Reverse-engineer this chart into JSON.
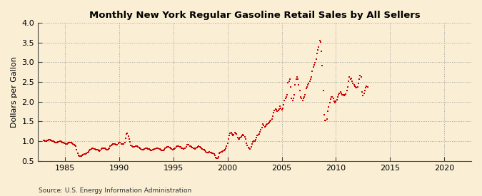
{
  "title": "Monthly New York Regular Gasoline Retail Sales by All Sellers",
  "ylabel": "Dollars per Gallon",
  "source": "Source: U.S. Energy Information Administration",
  "background_color": "#faefd4",
  "dot_color": "#cc0000",
  "ylim": [
    0.5,
    4.0
  ],
  "xlim": [
    1982.5,
    2022.5
  ],
  "yticks": [
    0.5,
    1.0,
    1.5,
    2.0,
    2.5,
    3.0,
    3.5,
    4.0
  ],
  "xticks": [
    1985,
    1990,
    1995,
    2000,
    2005,
    2010,
    2015,
    2020
  ],
  "data": [
    [
      1983.0,
      1.03
    ],
    [
      1983.08,
      1.02
    ],
    [
      1983.17,
      1.0
    ],
    [
      1983.25,
      1.01
    ],
    [
      1983.33,
      1.02
    ],
    [
      1983.42,
      1.03
    ],
    [
      1983.5,
      1.04
    ],
    [
      1983.58,
      1.04
    ],
    [
      1983.67,
      1.03
    ],
    [
      1983.75,
      1.02
    ],
    [
      1983.83,
      1.01
    ],
    [
      1983.92,
      1.0
    ],
    [
      1984.0,
      0.99
    ],
    [
      1984.08,
      0.97
    ],
    [
      1984.17,
      0.97
    ],
    [
      1984.25,
      0.97
    ],
    [
      1984.33,
      0.98
    ],
    [
      1984.42,
      0.99
    ],
    [
      1984.5,
      1.0
    ],
    [
      1984.58,
      1.0
    ],
    [
      1984.67,
      0.99
    ],
    [
      1984.75,
      0.97
    ],
    [
      1984.83,
      0.96
    ],
    [
      1984.92,
      0.95
    ],
    [
      1985.0,
      0.95
    ],
    [
      1985.08,
      0.94
    ],
    [
      1985.17,
      0.94
    ],
    [
      1985.25,
      0.95
    ],
    [
      1985.33,
      0.96
    ],
    [
      1985.42,
      0.97
    ],
    [
      1985.5,
      0.97
    ],
    [
      1985.58,
      0.96
    ],
    [
      1985.67,
      0.95
    ],
    [
      1985.75,
      0.93
    ],
    [
      1985.83,
      0.92
    ],
    [
      1985.92,
      0.9
    ],
    [
      1986.0,
      0.87
    ],
    [
      1986.08,
      0.79
    ],
    [
      1986.17,
      0.7
    ],
    [
      1986.25,
      0.65
    ],
    [
      1986.33,
      0.62
    ],
    [
      1986.42,
      0.62
    ],
    [
      1986.5,
      0.63
    ],
    [
      1986.58,
      0.64
    ],
    [
      1986.67,
      0.66
    ],
    [
      1986.75,
      0.67
    ],
    [
      1986.83,
      0.68
    ],
    [
      1986.92,
      0.68
    ],
    [
      1987.0,
      0.7
    ],
    [
      1987.08,
      0.72
    ],
    [
      1987.17,
      0.74
    ],
    [
      1987.25,
      0.77
    ],
    [
      1987.33,
      0.79
    ],
    [
      1987.42,
      0.81
    ],
    [
      1987.5,
      0.82
    ],
    [
      1987.58,
      0.82
    ],
    [
      1987.67,
      0.81
    ],
    [
      1987.75,
      0.8
    ],
    [
      1987.83,
      0.79
    ],
    [
      1987.92,
      0.79
    ],
    [
      1988.0,
      0.78
    ],
    [
      1988.08,
      0.76
    ],
    [
      1988.17,
      0.75
    ],
    [
      1988.25,
      0.77
    ],
    [
      1988.33,
      0.8
    ],
    [
      1988.42,
      0.82
    ],
    [
      1988.5,
      0.83
    ],
    [
      1988.58,
      0.83
    ],
    [
      1988.67,
      0.82
    ],
    [
      1988.75,
      0.8
    ],
    [
      1988.83,
      0.79
    ],
    [
      1988.92,
      0.78
    ],
    [
      1989.0,
      0.8
    ],
    [
      1989.08,
      0.83
    ],
    [
      1989.17,
      0.87
    ],
    [
      1989.25,
      0.9
    ],
    [
      1989.33,
      0.92
    ],
    [
      1989.42,
      0.93
    ],
    [
      1989.5,
      0.93
    ],
    [
      1989.58,
      0.93
    ],
    [
      1989.67,
      0.92
    ],
    [
      1989.75,
      0.91
    ],
    [
      1989.83,
      0.92
    ],
    [
      1989.92,
      0.95
    ],
    [
      1990.0,
      0.97
    ],
    [
      1990.08,
      0.96
    ],
    [
      1990.17,
      0.94
    ],
    [
      1990.25,
      0.93
    ],
    [
      1990.33,
      0.93
    ],
    [
      1990.42,
      0.94
    ],
    [
      1990.5,
      0.97
    ],
    [
      1990.58,
      1.07
    ],
    [
      1990.67,
      1.18
    ],
    [
      1990.75,
      1.2
    ],
    [
      1990.83,
      1.13
    ],
    [
      1990.92,
      1.06
    ],
    [
      1991.0,
      0.98
    ],
    [
      1991.08,
      0.9
    ],
    [
      1991.17,
      0.87
    ],
    [
      1991.25,
      0.86
    ],
    [
      1991.33,
      0.85
    ],
    [
      1991.42,
      0.86
    ],
    [
      1991.5,
      0.88
    ],
    [
      1991.58,
      0.88
    ],
    [
      1991.67,
      0.87
    ],
    [
      1991.75,
      0.85
    ],
    [
      1991.83,
      0.84
    ],
    [
      1991.92,
      0.82
    ],
    [
      1992.0,
      0.8
    ],
    [
      1992.08,
      0.79
    ],
    [
      1992.17,
      0.78
    ],
    [
      1992.25,
      0.79
    ],
    [
      1992.33,
      0.81
    ],
    [
      1992.42,
      0.82
    ],
    [
      1992.5,
      0.83
    ],
    [
      1992.58,
      0.82
    ],
    [
      1992.67,
      0.81
    ],
    [
      1992.75,
      0.8
    ],
    [
      1992.83,
      0.79
    ],
    [
      1992.92,
      0.77
    ],
    [
      1993.0,
      0.77
    ],
    [
      1993.08,
      0.78
    ],
    [
      1993.17,
      0.79
    ],
    [
      1993.25,
      0.8
    ],
    [
      1993.33,
      0.81
    ],
    [
      1993.42,
      0.82
    ],
    [
      1993.5,
      0.82
    ],
    [
      1993.58,
      0.82
    ],
    [
      1993.67,
      0.81
    ],
    [
      1993.75,
      0.8
    ],
    [
      1993.83,
      0.78
    ],
    [
      1993.92,
      0.77
    ],
    [
      1994.0,
      0.77
    ],
    [
      1994.08,
      0.77
    ],
    [
      1994.17,
      0.79
    ],
    [
      1994.25,
      0.82
    ],
    [
      1994.33,
      0.84
    ],
    [
      1994.42,
      0.85
    ],
    [
      1994.5,
      0.85
    ],
    [
      1994.58,
      0.85
    ],
    [
      1994.67,
      0.84
    ],
    [
      1994.75,
      0.82
    ],
    [
      1994.83,
      0.81
    ],
    [
      1994.92,
      0.79
    ],
    [
      1995.0,
      0.8
    ],
    [
      1995.08,
      0.81
    ],
    [
      1995.17,
      0.82
    ],
    [
      1995.25,
      0.85
    ],
    [
      1995.33,
      0.87
    ],
    [
      1995.42,
      0.88
    ],
    [
      1995.5,
      0.87
    ],
    [
      1995.58,
      0.86
    ],
    [
      1995.67,
      0.85
    ],
    [
      1995.75,
      0.83
    ],
    [
      1995.83,
      0.82
    ],
    [
      1995.92,
      0.81
    ],
    [
      1996.0,
      0.82
    ],
    [
      1996.08,
      0.83
    ],
    [
      1996.17,
      0.86
    ],
    [
      1996.25,
      0.91
    ],
    [
      1996.33,
      0.92
    ],
    [
      1996.42,
      0.91
    ],
    [
      1996.5,
      0.88
    ],
    [
      1996.58,
      0.87
    ],
    [
      1996.67,
      0.85
    ],
    [
      1996.75,
      0.84
    ],
    [
      1996.83,
      0.83
    ],
    [
      1996.92,
      0.82
    ],
    [
      1997.0,
      0.81
    ],
    [
      1997.08,
      0.82
    ],
    [
      1997.17,
      0.84
    ],
    [
      1997.25,
      0.86
    ],
    [
      1997.33,
      0.87
    ],
    [
      1997.42,
      0.86
    ],
    [
      1997.5,
      0.84
    ],
    [
      1997.58,
      0.83
    ],
    [
      1997.67,
      0.81
    ],
    [
      1997.75,
      0.79
    ],
    [
      1997.83,
      0.78
    ],
    [
      1997.92,
      0.76
    ],
    [
      1998.0,
      0.74
    ],
    [
      1998.08,
      0.72
    ],
    [
      1998.17,
      0.71
    ],
    [
      1998.25,
      0.72
    ],
    [
      1998.33,
      0.73
    ],
    [
      1998.42,
      0.72
    ],
    [
      1998.5,
      0.71
    ],
    [
      1998.58,
      0.7
    ],
    [
      1998.67,
      0.69
    ],
    [
      1998.75,
      0.67
    ],
    [
      1998.83,
      0.65
    ],
    [
      1998.92,
      0.59
    ],
    [
      1999.0,
      0.57
    ],
    [
      1999.08,
      0.57
    ],
    [
      1999.17,
      0.61
    ],
    [
      1999.25,
      0.69
    ],
    [
      1999.33,
      0.72
    ],
    [
      1999.42,
      0.73
    ],
    [
      1999.5,
      0.74
    ],
    [
      1999.58,
      0.75
    ],
    [
      1999.67,
      0.76
    ],
    [
      1999.75,
      0.79
    ],
    [
      1999.83,
      0.82
    ],
    [
      1999.92,
      0.88
    ],
    [
      2000.0,
      0.95
    ],
    [
      2000.08,
      1.06
    ],
    [
      2000.17,
      1.15
    ],
    [
      2000.25,
      1.2
    ],
    [
      2000.33,
      1.22
    ],
    [
      2000.42,
      1.19
    ],
    [
      2000.5,
      1.15
    ],
    [
      2000.58,
      1.17
    ],
    [
      2000.67,
      1.22
    ],
    [
      2000.75,
      1.2
    ],
    [
      2000.83,
      1.18
    ],
    [
      2000.92,
      1.1
    ],
    [
      2001.0,
      1.06
    ],
    [
      2001.08,
      1.05
    ],
    [
      2001.17,
      1.09
    ],
    [
      2001.25,
      1.12
    ],
    [
      2001.33,
      1.14
    ],
    [
      2001.42,
      1.17
    ],
    [
      2001.5,
      1.15
    ],
    [
      2001.58,
      1.12
    ],
    [
      2001.67,
      1.06
    ],
    [
      2001.75,
      0.95
    ],
    [
      2001.83,
      0.89
    ],
    [
      2001.92,
      0.84
    ],
    [
      2002.0,
      0.82
    ],
    [
      2002.08,
      0.8
    ],
    [
      2002.17,
      0.85
    ],
    [
      2002.25,
      0.93
    ],
    [
      2002.33,
      0.98
    ],
    [
      2002.42,
      1.0
    ],
    [
      2002.5,
      1.0
    ],
    [
      2002.58,
      1.04
    ],
    [
      2002.67,
      1.09
    ],
    [
      2002.75,
      1.14
    ],
    [
      2002.83,
      1.17
    ],
    [
      2002.92,
      1.19
    ],
    [
      2003.0,
      1.23
    ],
    [
      2003.08,
      1.29
    ],
    [
      2003.17,
      1.34
    ],
    [
      2003.25,
      1.44
    ],
    [
      2003.33,
      1.4
    ],
    [
      2003.42,
      1.36
    ],
    [
      2003.5,
      1.38
    ],
    [
      2003.58,
      1.41
    ],
    [
      2003.67,
      1.43
    ],
    [
      2003.75,
      1.46
    ],
    [
      2003.83,
      1.48
    ],
    [
      2003.92,
      1.5
    ],
    [
      2004.0,
      1.53
    ],
    [
      2004.08,
      1.56
    ],
    [
      2004.17,
      1.63
    ],
    [
      2004.25,
      1.73
    ],
    [
      2004.33,
      1.78
    ],
    [
      2004.42,
      1.81
    ],
    [
      2004.5,
      1.79
    ],
    [
      2004.58,
      1.77
    ],
    [
      2004.67,
      1.78
    ],
    [
      2004.75,
      1.81
    ],
    [
      2004.83,
      1.88
    ],
    [
      2004.92,
      1.83
    ],
    [
      2005.0,
      1.8
    ],
    [
      2005.08,
      1.83
    ],
    [
      2005.17,
      1.93
    ],
    [
      2005.25,
      2.03
    ],
    [
      2005.33,
      2.08
    ],
    [
      2005.42,
      2.13
    ],
    [
      2005.5,
      2.18
    ],
    [
      2005.58,
      2.48
    ],
    [
      2005.67,
      2.52
    ],
    [
      2005.75,
      2.58
    ],
    [
      2005.83,
      2.38
    ],
    [
      2005.92,
      2.08
    ],
    [
      2006.0,
      2.03
    ],
    [
      2006.08,
      2.08
    ],
    [
      2006.17,
      2.18
    ],
    [
      2006.25,
      2.42
    ],
    [
      2006.33,
      2.58
    ],
    [
      2006.42,
      2.62
    ],
    [
      2006.5,
      2.57
    ],
    [
      2006.58,
      2.42
    ],
    [
      2006.67,
      2.28
    ],
    [
      2006.75,
      2.13
    ],
    [
      2006.83,
      2.08
    ],
    [
      2006.92,
      2.03
    ],
    [
      2007.0,
      2.08
    ],
    [
      2007.08,
      2.13
    ],
    [
      2007.17,
      2.18
    ],
    [
      2007.25,
      2.33
    ],
    [
      2007.33,
      2.38
    ],
    [
      2007.42,
      2.43
    ],
    [
      2007.5,
      2.47
    ],
    [
      2007.58,
      2.52
    ],
    [
      2007.67,
      2.57
    ],
    [
      2007.75,
      2.62
    ],
    [
      2007.83,
      2.78
    ],
    [
      2007.92,
      2.88
    ],
    [
      2008.0,
      2.93
    ],
    [
      2008.08,
      2.98
    ],
    [
      2008.17,
      3.08
    ],
    [
      2008.25,
      3.22
    ],
    [
      2008.33,
      3.32
    ],
    [
      2008.42,
      3.38
    ],
    [
      2008.5,
      3.55
    ],
    [
      2008.58,
      3.52
    ],
    [
      2008.67,
      3.28
    ],
    [
      2008.75,
      2.92
    ],
    [
      2008.83,
      2.28
    ],
    [
      2008.92,
      1.68
    ],
    [
      2009.0,
      1.52
    ],
    [
      2009.08,
      1.52
    ],
    [
      2009.17,
      1.57
    ],
    [
      2009.25,
      1.77
    ],
    [
      2009.33,
      1.87
    ],
    [
      2009.42,
      1.98
    ],
    [
      2009.5,
      2.07
    ],
    [
      2009.58,
      2.12
    ],
    [
      2009.67,
      2.12
    ],
    [
      2009.75,
      2.08
    ],
    [
      2009.83,
      2.02
    ],
    [
      2009.92,
      1.98
    ],
    [
      2010.0,
      2.02
    ],
    [
      2010.08,
      2.05
    ],
    [
      2010.17,
      2.12
    ],
    [
      2010.25,
      2.18
    ],
    [
      2010.33,
      2.22
    ],
    [
      2010.42,
      2.25
    ],
    [
      2010.5,
      2.22
    ],
    [
      2010.58,
      2.18
    ],
    [
      2010.67,
      2.17
    ],
    [
      2010.75,
      2.15
    ],
    [
      2010.83,
      2.17
    ],
    [
      2010.92,
      2.2
    ],
    [
      2011.0,
      2.28
    ],
    [
      2011.08,
      2.38
    ],
    [
      2011.17,
      2.52
    ],
    [
      2011.25,
      2.62
    ],
    [
      2011.33,
      2.58
    ],
    [
      2011.42,
      2.6
    ],
    [
      2011.5,
      2.52
    ],
    [
      2011.58,
      2.47
    ],
    [
      2011.67,
      2.42
    ],
    [
      2011.75,
      2.4
    ],
    [
      2011.83,
      2.38
    ],
    [
      2011.92,
      2.35
    ],
    [
      2012.0,
      2.38
    ],
    [
      2012.08,
      2.47
    ],
    [
      2012.17,
      2.57
    ],
    [
      2012.25,
      2.67
    ],
    [
      2012.33,
      2.62
    ],
    [
      2012.42,
      2.25
    ],
    [
      2012.5,
      2.15
    ],
    [
      2012.58,
      2.22
    ],
    [
      2012.67,
      2.28
    ],
    [
      2012.75,
      2.35
    ],
    [
      2012.83,
      2.4
    ],
    [
      2012.92,
      2.38
    ]
  ]
}
